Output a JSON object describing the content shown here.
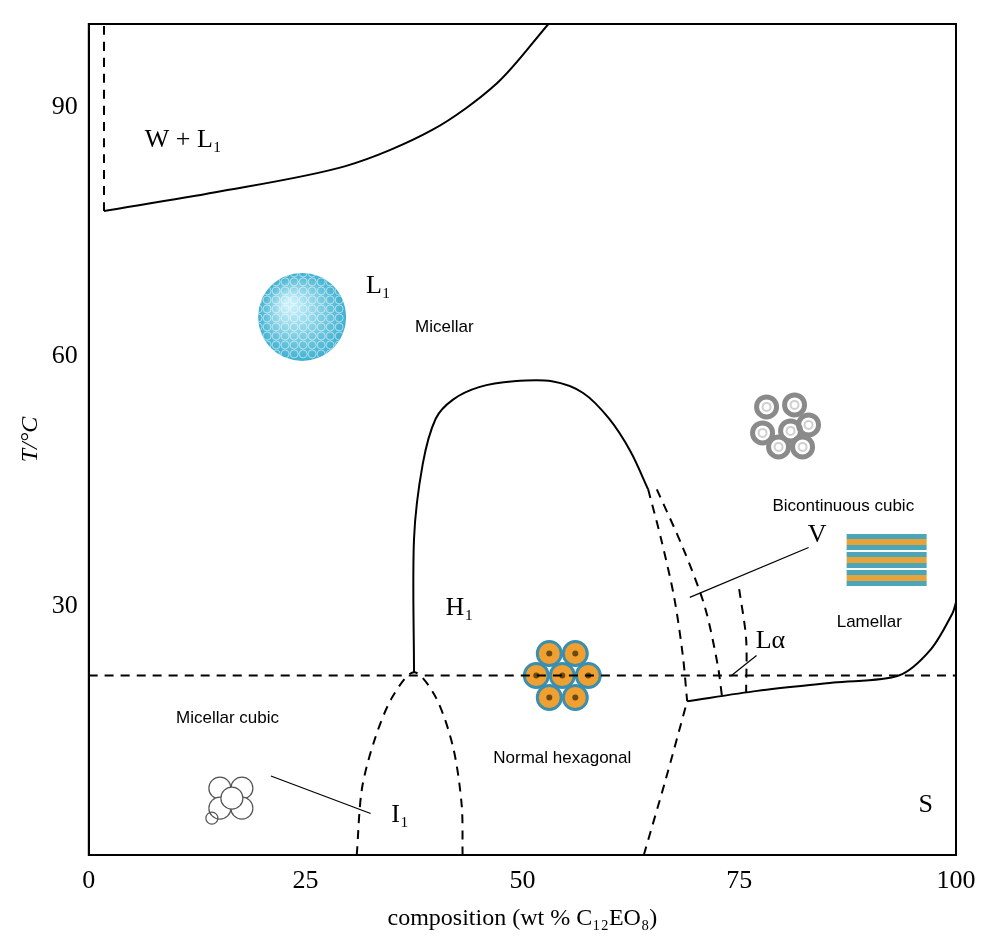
{
  "chart_data": {
    "type": "line",
    "x_label": "composition (wt % C₁₂EO₈)",
    "y_label": "T/°C",
    "xlim": [
      0,
      100
    ],
    "ylim": [
      0,
      100
    ],
    "xticks": [
      0,
      25,
      50,
      75,
      100
    ],
    "yticks": [
      30,
      60,
      90
    ],
    "grid": false,
    "series": [
      {
        "color": "#000000",
        "line_style": "solid",
        "marker": "none",
        "x": [
          1.75,
          14.6,
          29.6,
          39.6,
          47.1,
          53
        ],
        "values": [
          77.5,
          79.75,
          82.9,
          87.25,
          92.9,
          100
        ]
      },
      {
        "color": "#000000",
        "line_style": "dashed",
        "marker": "none",
        "x": [
          1.75,
          1.75
        ],
        "values": [
          77.5,
          100
        ]
      },
      {
        "color": "#000000",
        "line_style": "solid",
        "marker": "none",
        "x": [
          37.5,
          37.5,
          38.5,
          40,
          42,
          45,
          49,
          53.4,
          57,
          60,
          62.5,
          64.5
        ],
        "values": [
          22,
          38,
          47,
          52.5,
          54.8,
          56.3,
          57,
          57,
          55.6,
          52.5,
          48.5,
          44
        ]
      },
      {
        "color": "#000000",
        "line_style": "dashed",
        "marker": "none",
        "x": [
          30.9,
          31.5,
          33,
          35,
          37.5,
          40,
          42,
          43,
          43.1
        ],
        "values": [
          0,
          8,
          14,
          19,
          22,
          19,
          13,
          6,
          0
        ]
      },
      {
        "color": "#000000",
        "line_style": "dashed",
        "marker": "none",
        "x": [
          64.5,
          66,
          67.5,
          68.5,
          69
        ],
        "values": [
          44,
          38,
          31,
          24,
          18.5
        ]
      },
      {
        "color": "#000000",
        "line_style": "dashed",
        "marker": "none",
        "x": [
          65.5,
          68.5,
          71,
          72.5,
          73
        ],
        "values": [
          44,
          37,
          30,
          23,
          19.2
        ]
      },
      {
        "color": "#000000",
        "line_style": "dashed",
        "marker": "none",
        "x": [
          75,
          75.8,
          75.8
        ],
        "values": [
          32,
          26,
          19.6
        ]
      },
      {
        "color": "#000000",
        "line_style": "dashed",
        "marker": "none",
        "x": [
          64,
          66.5,
          69
        ],
        "values": [
          0,
          9,
          18.5
        ]
      },
      {
        "color": "#000000",
        "line_style": "solid",
        "marker": "none",
        "x": [
          69,
          77.1,
          85.9,
          93.4,
          97.1,
          99.6,
          100
        ],
        "values": [
          18.5,
          19.75,
          20.75,
          21.6,
          24.75,
          29.1,
          30.4
        ]
      },
      {
        "color": "#000000",
        "line_style": "dashed",
        "marker": "none",
        "x": [
          0,
          100
        ],
        "values": [
          21.6,
          21.6
        ]
      }
    ],
    "annotations": [
      {
        "text": "W + L₁",
        "x": 10.9,
        "y": 86
      },
      {
        "text": "L₁",
        "x": 33.4,
        "y": 68.5
      },
      {
        "text": "Micellar",
        "x": 41,
        "y": 63.5
      },
      {
        "text": "H₁",
        "x": 42.75,
        "y": 29.75
      },
      {
        "text": "Micellar cubic",
        "x": 16,
        "y": 16.5
      },
      {
        "text": "I₁",
        "x": 35.9,
        "y": 4.75
      },
      {
        "text": "Normal hexagonal",
        "x": 54.6,
        "y": 11.6
      },
      {
        "text": "Bicontinuous cubic",
        "x": 87,
        "y": 42
      },
      {
        "text": "V",
        "x": 84,
        "y": 38.5
      },
      {
        "text": "Lamellar",
        "x": 90,
        "y": 28
      },
      {
        "text": "Lα",
        "x": 78.6,
        "y": 25.75
      },
      {
        "text": "S",
        "x": 96.5,
        "y": 6
      }
    ]
  }
}
